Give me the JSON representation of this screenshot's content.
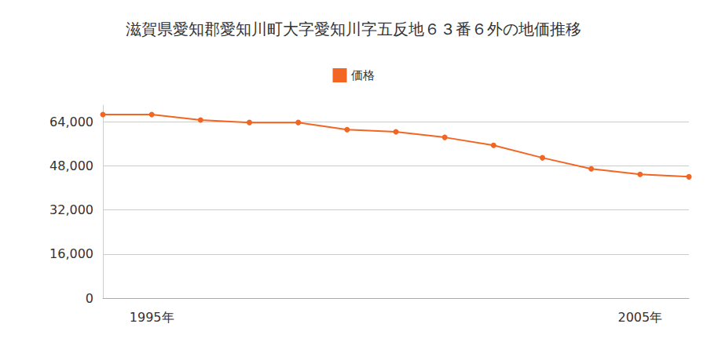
{
  "chart_data": {
    "type": "line",
    "title": "滋賀県愛知郡愛知川町大字愛知川字五反地６３番６外の地価推移",
    "categories": [
      null,
      "1995年",
      null,
      null,
      null,
      null,
      null,
      null,
      null,
      null,
      null,
      "2005年",
      null
    ],
    "series": [
      {
        "name": "価格",
        "color": "#f26522",
        "values": [
          66600,
          66600,
          64600,
          63700,
          63700,
          61100,
          60300,
          58300,
          55400,
          50900,
          46900,
          44900,
          44000
        ]
      }
    ],
    "ylim": [
      0,
      70000
    ],
    "yticks": [
      0,
      {
        "value": 16000,
        "label": "16,000"
      },
      {
        "value": 32000,
        "label": "32,000"
      },
      {
        "value": 48000,
        "label": "48,000"
      },
      {
        "value": 64000,
        "label": "64,000"
      }
    ],
    "grid": true,
    "legend": "top",
    "marker": "circle"
  }
}
